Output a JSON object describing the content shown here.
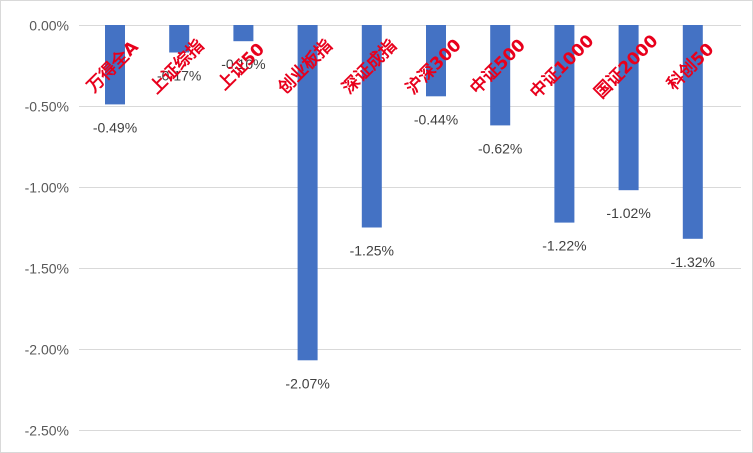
{
  "chart_data": {
    "type": "bar",
    "title": "",
    "xlabel": "",
    "ylabel": "",
    "categories": [
      "万得全A",
      "上证综指",
      "上证50",
      "创业板指",
      "深证成指",
      "沪深300",
      "中证500",
      "中证1000",
      "国证2000",
      "科创50"
    ],
    "values": [
      -0.49,
      -0.17,
      -0.1,
      -2.07,
      -1.25,
      -0.44,
      -0.62,
      -1.22,
      -1.02,
      -1.32
    ],
    "data_labels": [
      "-0.49%",
      "-0.17%",
      "-0.10%",
      "-2.07%",
      "-1.25%",
      "-0.44%",
      "-0.62%",
      "-1.22%",
      "-1.02%",
      "-1.32%"
    ],
    "y_ticks": [
      0,
      -0.5,
      -1.0,
      -1.5,
      -2.0,
      -2.5
    ],
    "y_tick_labels": [
      "0.00%",
      "-0.50%",
      "-1.00%",
      "-1.50%",
      "-2.00%",
      "-2.50%"
    ],
    "ylim": [
      -2.5,
      0
    ],
    "grid": true,
    "legend": "none",
    "colors": {
      "bar": "#4472c4",
      "category_label": "#e8001c",
      "grid": "#d9d9d9",
      "tick_label": "#595959",
      "data_label": "#404040"
    }
  }
}
